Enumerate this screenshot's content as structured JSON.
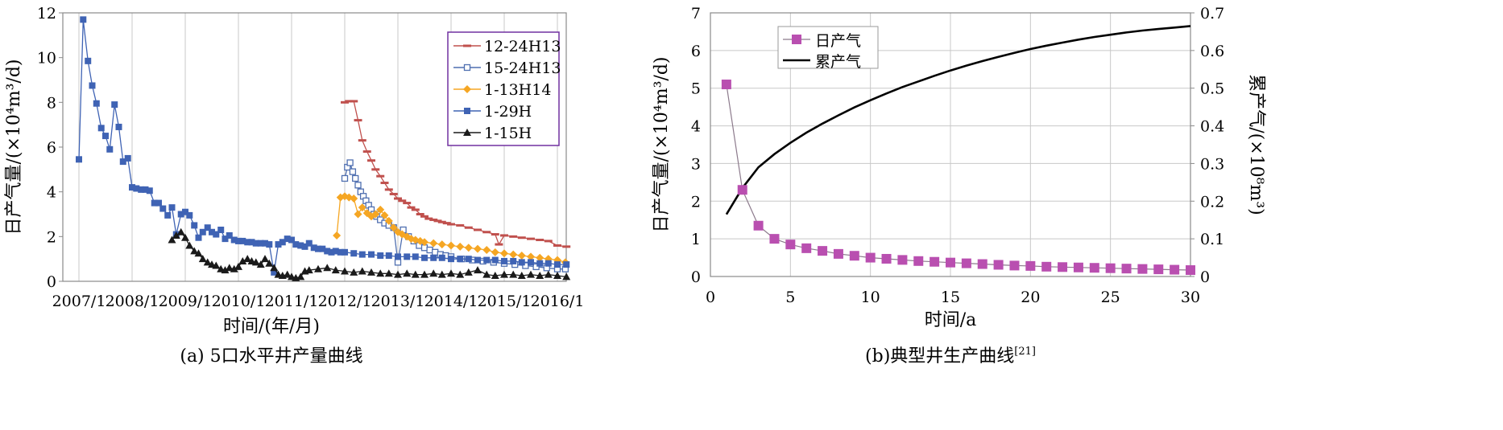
{
  "colors": {
    "s12_24H13": "#c0504d",
    "s15_24H13": "#4f6fb0",
    "s1_13H14": "#f5a623",
    "s1_29H": "#3f63b4",
    "s1_15H": "#1a1a1a",
    "daily": "#b94fb0",
    "cumulative": "#000000",
    "legend_border_a": "#7030a0",
    "grid": "#c8c8c8"
  },
  "chart_data": [
    {
      "type": "line",
      "caption": "(a) 5口水平井产量曲线",
      "xlabel": "时间/(年/月)",
      "ylabel": "日产气量/(×10⁴m³/d)",
      "x_tick_labels": [
        "2007/1",
        "2008/1",
        "2009/1",
        "2010/1",
        "2011/1",
        "2012/1",
        "2013/1",
        "2014/1",
        "2015/1",
        "2016/1"
      ],
      "y_ticks": [
        0,
        2,
        4,
        6,
        8,
        10,
        12
      ],
      "xlim": [
        2007.0,
        2016.3
      ],
      "ylim": [
        0,
        12
      ],
      "grid": "vertical",
      "legend_position": "top-right",
      "series": [
        {
          "name": "12-24H13",
          "marker": "dash",
          "x": [
            2012.0,
            2012.08,
            2012.17,
            2012.25,
            2012.33,
            2012.42,
            2012.5,
            2012.58,
            2012.67,
            2012.75,
            2012.83,
            2012.92,
            2013.0,
            2013.08,
            2013.17,
            2013.25,
            2013.33,
            2013.42,
            2013.5,
            2013.58,
            2013.67,
            2013.75,
            2013.83,
            2013.92,
            2014.0,
            2014.17,
            2014.33,
            2014.5,
            2014.67,
            2014.83,
            2014.9,
            2015.0,
            2015.17,
            2015.33,
            2015.5,
            2015.67,
            2015.83,
            2016.0,
            2016.17
          ],
          "values": [
            8.0,
            8.05,
            8.05,
            7.2,
            6.3,
            5.8,
            5.4,
            5.0,
            4.7,
            4.4,
            4.1,
            3.9,
            3.7,
            3.6,
            3.5,
            3.3,
            3.2,
            3.0,
            2.9,
            2.8,
            2.75,
            2.7,
            2.65,
            2.6,
            2.55,
            2.5,
            2.4,
            2.3,
            2.2,
            2.1,
            1.65,
            2.05,
            2.0,
            1.95,
            1.9,
            1.85,
            1.8,
            1.6,
            1.55
          ]
        },
        {
          "name": "15-24H13",
          "marker": "square-open",
          "x": [
            2012.0,
            2012.05,
            2012.1,
            2012.15,
            2012.2,
            2012.25,
            2012.3,
            2012.35,
            2012.4,
            2012.45,
            2012.5,
            2012.55,
            2012.6,
            2012.67,
            2012.75,
            2012.83,
            2012.92,
            2013.0,
            2013.1,
            2013.2,
            2013.3,
            2013.4,
            2013.5,
            2013.6,
            2013.7,
            2013.8,
            2013.9,
            2014.0,
            2014.2,
            2014.4,
            2014.6,
            2014.8,
            2015.0,
            2015.2,
            2015.4,
            2015.6,
            2015.8,
            2016.0,
            2016.15
          ],
          "values": [
            4.6,
            5.1,
            5.3,
            4.9,
            4.6,
            4.3,
            4.0,
            3.8,
            3.6,
            3.4,
            3.2,
            3.0,
            2.9,
            2.75,
            2.6,
            2.5,
            2.4,
            0.85,
            2.3,
            2.0,
            1.8,
            1.6,
            1.5,
            1.4,
            1.3,
            1.2,
            1.15,
            1.1,
            1.0,
            0.95,
            0.9,
            0.85,
            0.8,
            0.75,
            0.7,
            0.65,
            0.6,
            0.55,
            0.55
          ]
        },
        {
          "name": "1-13H14",
          "marker": "diamond",
          "x": [
            2011.85,
            2011.92,
            2012.0,
            2012.08,
            2012.17,
            2012.25,
            2012.33,
            2012.42,
            2012.5,
            2012.58,
            2012.67,
            2012.75,
            2012.83,
            2012.92,
            2013.0,
            2013.08,
            2013.17,
            2013.25,
            2013.33,
            2013.42,
            2013.5,
            2013.67,
            2013.83,
            2014.0,
            2014.17,
            2014.33,
            2014.5,
            2014.67,
            2014.83,
            2015.0,
            2015.17,
            2015.33,
            2015.5,
            2015.67,
            2015.83,
            2016.0,
            2016.15
          ],
          "values": [
            2.05,
            3.75,
            3.8,
            3.75,
            3.7,
            3.0,
            3.3,
            3.05,
            2.9,
            3.0,
            3.2,
            2.95,
            2.7,
            2.4,
            2.2,
            2.1,
            2.0,
            1.9,
            1.85,
            1.8,
            1.75,
            1.7,
            1.65,
            1.6,
            1.55,
            1.5,
            1.45,
            1.4,
            1.3,
            1.25,
            1.2,
            1.15,
            1.1,
            1.05,
            1.0,
            0.95,
            0.85
          ]
        },
        {
          "name": "1-29H",
          "marker": "square",
          "x": [
            2007.0,
            2007.08,
            2007.17,
            2007.25,
            2007.33,
            2007.42,
            2007.5,
            2007.58,
            2007.67,
            2007.75,
            2007.83,
            2007.92,
            2008.0,
            2008.08,
            2008.17,
            2008.25,
            2008.33,
            2008.42,
            2008.5,
            2008.58,
            2008.67,
            2008.75,
            2008.83,
            2008.92,
            2009.0,
            2009.08,
            2009.17,
            2009.25,
            2009.33,
            2009.42,
            2009.5,
            2009.58,
            2009.67,
            2009.75,
            2009.83,
            2009.92,
            2010.0,
            2010.08,
            2010.17,
            2010.25,
            2010.33,
            2010.42,
            2010.5,
            2010.58,
            2010.67,
            2010.75,
            2010.83,
            2010.92,
            2011.0,
            2011.08,
            2011.17,
            2011.25,
            2011.33,
            2011.42,
            2011.5,
            2011.58,
            2011.67,
            2011.75,
            2011.83,
            2011.92,
            2012.0,
            2012.17,
            2012.33,
            2012.5,
            2012.67,
            2012.83,
            2013.0,
            2013.17,
            2013.33,
            2013.5,
            2013.67,
            2013.83,
            2014.0,
            2014.17,
            2014.33,
            2014.5,
            2014.67,
            2014.83,
            2015.0,
            2015.17,
            2015.33,
            2015.5,
            2015.67,
            2015.83,
            2016.0,
            2016.17
          ],
          "values": [
            5.45,
            11.7,
            9.85,
            8.75,
            7.95,
            6.85,
            6.5,
            5.9,
            7.9,
            6.9,
            5.35,
            5.5,
            4.2,
            4.15,
            4.1,
            4.1,
            4.05,
            3.5,
            3.5,
            3.25,
            2.95,
            3.3,
            2.1,
            3.0,
            3.1,
            2.95,
            2.5,
            1.95,
            2.2,
            2.4,
            2.2,
            2.1,
            2.3,
            1.9,
            2.05,
            1.85,
            1.8,
            1.8,
            1.75,
            1.75,
            1.7,
            1.7,
            1.7,
            1.65,
            0.4,
            1.65,
            1.75,
            1.9,
            1.85,
            1.65,
            1.6,
            1.55,
            1.7,
            1.5,
            1.45,
            1.45,
            1.35,
            1.3,
            1.35,
            1.3,
            1.3,
            1.25,
            1.2,
            1.2,
            1.15,
            1.15,
            1.1,
            1.1,
            1.1,
            1.05,
            1.05,
            1.05,
            1.0,
            1.0,
            1.0,
            0.95,
            0.95,
            0.95,
            0.9,
            0.9,
            0.85,
            0.85,
            0.8,
            0.8,
            0.75,
            0.75
          ]
        },
        {
          "name": "1-15H",
          "marker": "triangle",
          "x": [
            2008.75,
            2008.83,
            2008.92,
            2009.0,
            2009.08,
            2009.17,
            2009.25,
            2009.33,
            2009.42,
            2009.5,
            2009.58,
            2009.67,
            2009.75,
            2009.83,
            2009.92,
            2010.0,
            2010.08,
            2010.17,
            2010.25,
            2010.33,
            2010.42,
            2010.5,
            2010.58,
            2010.67,
            2010.75,
            2010.83,
            2010.92,
            2011.0,
            2011.08,
            2011.17,
            2011.25,
            2011.33,
            2011.5,
            2011.67,
            2011.83,
            2012.0,
            2012.17,
            2012.33,
            2012.5,
            2012.67,
            2012.83,
            2013.0,
            2013.17,
            2013.33,
            2013.5,
            2013.67,
            2013.83,
            2014.0,
            2014.17,
            2014.33,
            2014.5,
            2014.67,
            2014.83,
            2015.0,
            2015.17,
            2015.33,
            2015.5,
            2015.67,
            2015.83,
            2016.0,
            2016.17
          ],
          "values": [
            1.85,
            2.05,
            2.2,
            1.95,
            1.6,
            1.35,
            1.25,
            1.0,
            0.85,
            0.75,
            0.7,
            0.55,
            0.5,
            0.6,
            0.55,
            0.65,
            0.9,
            1.0,
            0.9,
            0.85,
            0.75,
            1.0,
            0.8,
            0.6,
            0.3,
            0.25,
            0.3,
            0.2,
            0.15,
            0.2,
            0.45,
            0.5,
            0.55,
            0.6,
            0.5,
            0.45,
            0.4,
            0.45,
            0.4,
            0.35,
            0.35,
            0.3,
            0.35,
            0.3,
            0.3,
            0.35,
            0.3,
            0.35,
            0.3,
            0.4,
            0.5,
            0.3,
            0.25,
            0.3,
            0.3,
            0.25,
            0.3,
            0.25,
            0.3,
            0.25,
            0.2
          ]
        }
      ]
    },
    {
      "type": "line",
      "caption": "(b)典型井生产曲线",
      "caption_ref": "[21]",
      "xlabel": "时间/a",
      "ylabel": "日产气量/(×10⁴m³/d)",
      "y2label": "累产气/(×10⁸m³)",
      "x_ticks": [
        0,
        5,
        10,
        15,
        20,
        25,
        30
      ],
      "y_ticks": [
        0,
        1,
        2,
        3,
        4,
        5,
        6,
        7
      ],
      "y2_ticks": [
        "0",
        "0.1",
        "0.2",
        "0.3",
        "0.4",
        "0.5",
        "0.6",
        "0.7"
      ],
      "xlim": [
        0,
        30
      ],
      "ylim": [
        0,
        7
      ],
      "y2lim": [
        0,
        0.7
      ],
      "grid": "both",
      "legend_position": "top-left",
      "series": [
        {
          "name": "日产气",
          "marker": "square",
          "axis": "left",
          "x": [
            1,
            2,
            3,
            4,
            5,
            6,
            7,
            8,
            9,
            10,
            11,
            12,
            13,
            14,
            15,
            16,
            17,
            18,
            19,
            20,
            21,
            22,
            23,
            24,
            25,
            26,
            27,
            28,
            29,
            30
          ],
          "values": [
            5.1,
            2.3,
            1.35,
            1.0,
            0.85,
            0.75,
            0.68,
            0.6,
            0.55,
            0.5,
            0.47,
            0.44,
            0.41,
            0.39,
            0.37,
            0.35,
            0.33,
            0.31,
            0.29,
            0.28,
            0.26,
            0.25,
            0.24,
            0.23,
            0.22,
            0.21,
            0.2,
            0.19,
            0.18,
            0.17
          ]
        },
        {
          "name": "累产气",
          "marker": "none",
          "axis": "right",
          "x": [
            1,
            2,
            3,
            4,
            5,
            6,
            7,
            8,
            9,
            10,
            11,
            12,
            13,
            14,
            15,
            16,
            17,
            18,
            19,
            20,
            21,
            22,
            23,
            24,
            25,
            26,
            27,
            28,
            29,
            30
          ],
          "values": [
            0.165,
            0.235,
            0.29,
            0.325,
            0.355,
            0.382,
            0.406,
            0.428,
            0.449,
            0.468,
            0.486,
            0.503,
            0.518,
            0.533,
            0.547,
            0.56,
            0.572,
            0.583,
            0.594,
            0.604,
            0.613,
            0.621,
            0.629,
            0.636,
            0.642,
            0.648,
            0.653,
            0.657,
            0.661,
            0.665
          ]
        }
      ]
    }
  ]
}
